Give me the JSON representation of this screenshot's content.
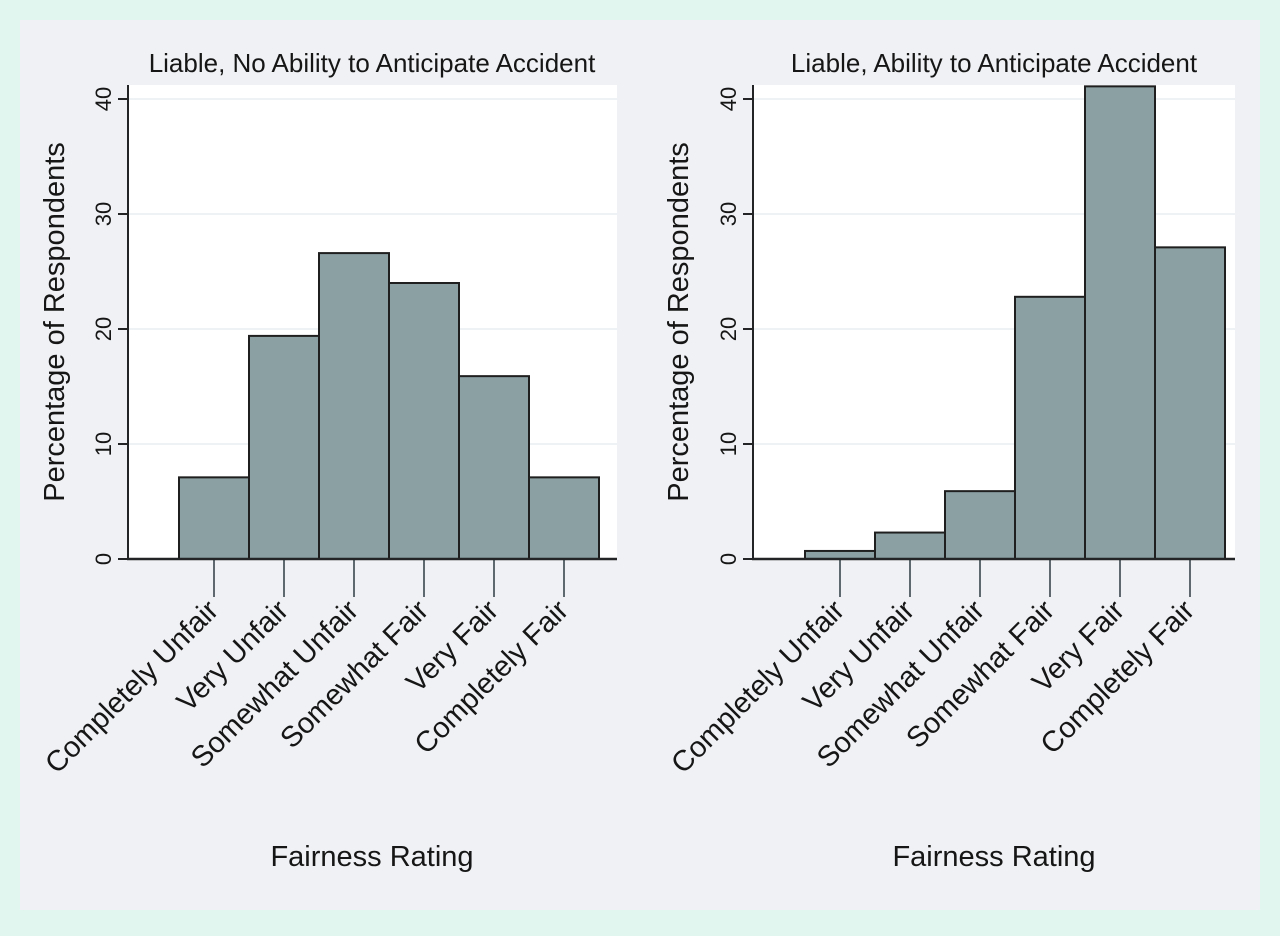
{
  "colors": {
    "outer_background": "#e2f6f0",
    "figure_background": "#eff1f4",
    "plot_background": "#ffffff",
    "gridline": "#e8eef2",
    "axis": "#222426",
    "xtick": "#3a474d",
    "text": "#161616"
  },
  "chart_data": [
    {
      "type": "bar",
      "title": "Liable, No Ability to Anticipate Accident",
      "xlabel": "Fairness Rating",
      "ylabel": "Percentage of Respondents",
      "categories": [
        "Completely Unfair",
        "Very Unfair",
        "Somewhat Unfair",
        "Somewhat Fair",
        "Very Fair",
        "Completely Fair"
      ],
      "values": [
        7.1,
        19.4,
        26.6,
        24.0,
        15.9,
        7.1
      ],
      "ylim": [
        0,
        40
      ],
      "yticks": [
        0,
        10,
        20,
        30,
        40
      ],
      "grid": true,
      "legend": "none",
      "bar_color": "#8ba0a3",
      "bar_edge_color": "#1f1f1f"
    },
    {
      "type": "bar",
      "title": "Liable, Ability to Anticipate Accident",
      "xlabel": "Fairness Rating",
      "ylabel": "Percentage of Respondents",
      "categories": [
        "Completely Unfair",
        "Very Unfair",
        "Somewhat Unfair",
        "Somewhat Fair",
        "Very Fair",
        "Completely Fair"
      ],
      "values": [
        0.7,
        2.3,
        5.9,
        22.8,
        41.1,
        27.1
      ],
      "ylim": [
        0,
        40
      ],
      "yticks": [
        0,
        10,
        20,
        30,
        40
      ],
      "grid": true,
      "legend": "none",
      "bar_color": "#8ba0a3",
      "bar_edge_color": "#1f1f1f"
    }
  ]
}
